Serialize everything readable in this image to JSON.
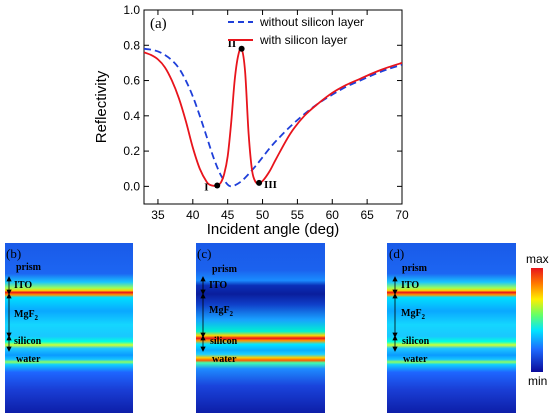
{
  "chart_data": {
    "type": "line",
    "panel_label": "(a)",
    "xlabel": "Incident angle (deg)",
    "ylabel": "Reflectivity",
    "xlim": [
      33,
      70
    ],
    "ylim": [
      -0.1,
      1.0
    ],
    "xticks": [
      "35",
      "40",
      "45",
      "50",
      "55",
      "60",
      "65",
      "70"
    ],
    "yticks": [
      "0.0",
      "0.2",
      "0.4",
      "0.6",
      "0.8",
      "1.0"
    ],
    "legend_placement": "top-right",
    "series": [
      {
        "name": "without silicon layer",
        "style": "dashed",
        "color": "#1f3fd9",
        "x": [
          33,
          34,
          35,
          36,
          37,
          38,
          39,
          40,
          41,
          42,
          43,
          44,
          45,
          45.5,
          46,
          47,
          48,
          49,
          50,
          51,
          52,
          54,
          56,
          58,
          60,
          62,
          64,
          66,
          68,
          70
        ],
        "y": [
          0.78,
          0.775,
          0.765,
          0.745,
          0.715,
          0.67,
          0.6,
          0.51,
          0.4,
          0.28,
          0.16,
          0.065,
          0.01,
          0.0,
          0.005,
          0.03,
          0.07,
          0.115,
          0.165,
          0.215,
          0.26,
          0.34,
          0.41,
          0.47,
          0.52,
          0.565,
          0.6,
          0.635,
          0.665,
          0.69
        ]
      },
      {
        "name": "with silicon layer",
        "style": "solid",
        "color": "#e8141c",
        "x": [
          33,
          34,
          35,
          36,
          37,
          38,
          39,
          40,
          41,
          42,
          42.5,
          43,
          43.5,
          44,
          44.5,
          45,
          45.5,
          46,
          46.5,
          47,
          47.5,
          48,
          48.5,
          49,
          49.5,
          50,
          51,
          52,
          54,
          56,
          58,
          60,
          62,
          64,
          66,
          68,
          70
        ],
        "y": [
          0.76,
          0.745,
          0.72,
          0.675,
          0.6,
          0.5,
          0.37,
          0.22,
          0.1,
          0.025,
          0.008,
          0.003,
          0.005,
          0.02,
          0.07,
          0.17,
          0.36,
          0.6,
          0.74,
          0.78,
          0.65,
          0.3,
          0.09,
          0.025,
          0.02,
          0.03,
          0.085,
          0.16,
          0.3,
          0.4,
          0.47,
          0.53,
          0.575,
          0.61,
          0.645,
          0.675,
          0.7
        ]
      }
    ],
    "points": [
      {
        "label": "I",
        "x": 43.5,
        "y": 0.005
      },
      {
        "label": "II",
        "x": 47.0,
        "y": 0.78
      },
      {
        "label": "III",
        "x": 49.5,
        "y": 0.02
      }
    ]
  },
  "fields": [
    {
      "label": "(b)",
      "layers": [
        "prism",
        "ITO",
        "MgF",
        "2",
        "silicon",
        "water"
      ],
      "arrows": true
    },
    {
      "label": "(c)",
      "layers": [
        "prism",
        "ITO",
        "MgF",
        "2",
        "silicon",
        "water"
      ],
      "arrows": true
    },
    {
      "label": "(d)",
      "layers": [
        "prism",
        "ITO",
        "MgF",
        "2",
        "silicon",
        "water"
      ],
      "arrows": true
    }
  ],
  "colorbar": {
    "max_label": "max",
    "min_label": "min"
  }
}
